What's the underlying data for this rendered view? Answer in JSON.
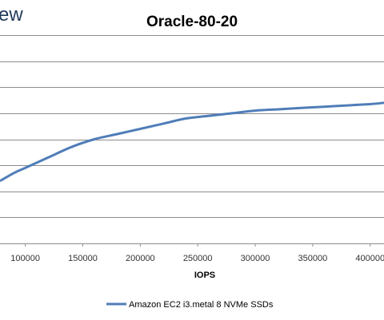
{
  "brand_fragment": "ew",
  "chart_data": {
    "type": "line",
    "title": "Oracle-80-20",
    "xlabel": "IOPS",
    "ylabel": "",
    "xlim": [
      78000,
      412000
    ],
    "ylim": [
      0,
      0.8
    ],
    "xticks": [
      100000,
      150000,
      200000,
      250000,
      300000,
      350000,
      400000
    ],
    "xtick_labels": [
      "100000",
      "150000",
      "200000",
      "250000",
      "300000",
      "350000",
      "400000"
    ],
    "ygrid": [
      0,
      0.1,
      0.2,
      0.3,
      0.4,
      0.5,
      0.6,
      0.7,
      0.8
    ],
    "grid": true,
    "legend_position": "bottom",
    "colors": {
      "series": "#4f7db8",
      "grid": "#8c8c8c"
    },
    "series": [
      {
        "name": "Amazon EC2 i3.metal 8 NVMe SSDs",
        "x": [
          78000,
          90000,
          100000,
          120000,
          140000,
          160000,
          180000,
          200000,
          220000,
          240000,
          260000,
          280000,
          300000,
          320000,
          340000,
          360000,
          380000,
          400000,
          412000
        ],
        "y": [
          0.24,
          0.27,
          0.29,
          0.33,
          0.37,
          0.4,
          0.42,
          0.44,
          0.46,
          0.48,
          0.49,
          0.5,
          0.51,
          0.515,
          0.52,
          0.525,
          0.53,
          0.535,
          0.54
        ]
      }
    ]
  }
}
